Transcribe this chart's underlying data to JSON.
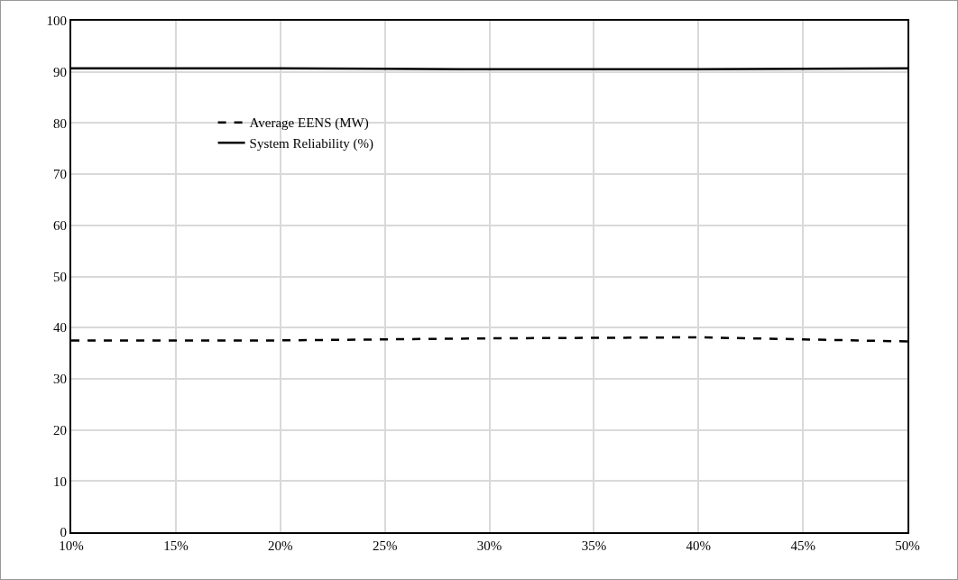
{
  "chart_data": {
    "type": "line",
    "x": [
      10,
      15,
      20,
      25,
      30,
      35,
      40,
      45,
      50
    ],
    "series": [
      {
        "name": "Average EENS (MW)",
        "color": "#000000",
        "line_style": "dashed",
        "values": [
          37.5,
          37.5,
          37.5,
          37.7,
          37.9,
          38.0,
          38.1,
          37.7,
          37.3
        ]
      },
      {
        "name": "System Reliability (%)",
        "color": "#000000",
        "line_style": "solid",
        "values": [
          90.7,
          90.7,
          90.7,
          90.6,
          90.5,
          90.5,
          90.5,
          90.6,
          90.7
        ]
      }
    ],
    "xlim": [
      10,
      50
    ],
    "xticks": [
      {
        "value": 10,
        "label": "10%"
      },
      {
        "value": 15,
        "label": "15%"
      },
      {
        "value": 20,
        "label": "20%"
      },
      {
        "value": 25,
        "label": "25%"
      },
      {
        "value": 30,
        "label": "30%"
      },
      {
        "value": 35,
        "label": "35%"
      },
      {
        "value": 40,
        "label": "40%"
      },
      {
        "value": 45,
        "label": "45%"
      },
      {
        "value": 50,
        "label": "50%"
      }
    ],
    "ylim": [
      0,
      100
    ],
    "yticks": [
      0,
      10,
      20,
      30,
      40,
      50,
      60,
      70,
      80,
      90,
      100
    ],
    "grid": true,
    "legend": "top left",
    "marker": "none"
  }
}
